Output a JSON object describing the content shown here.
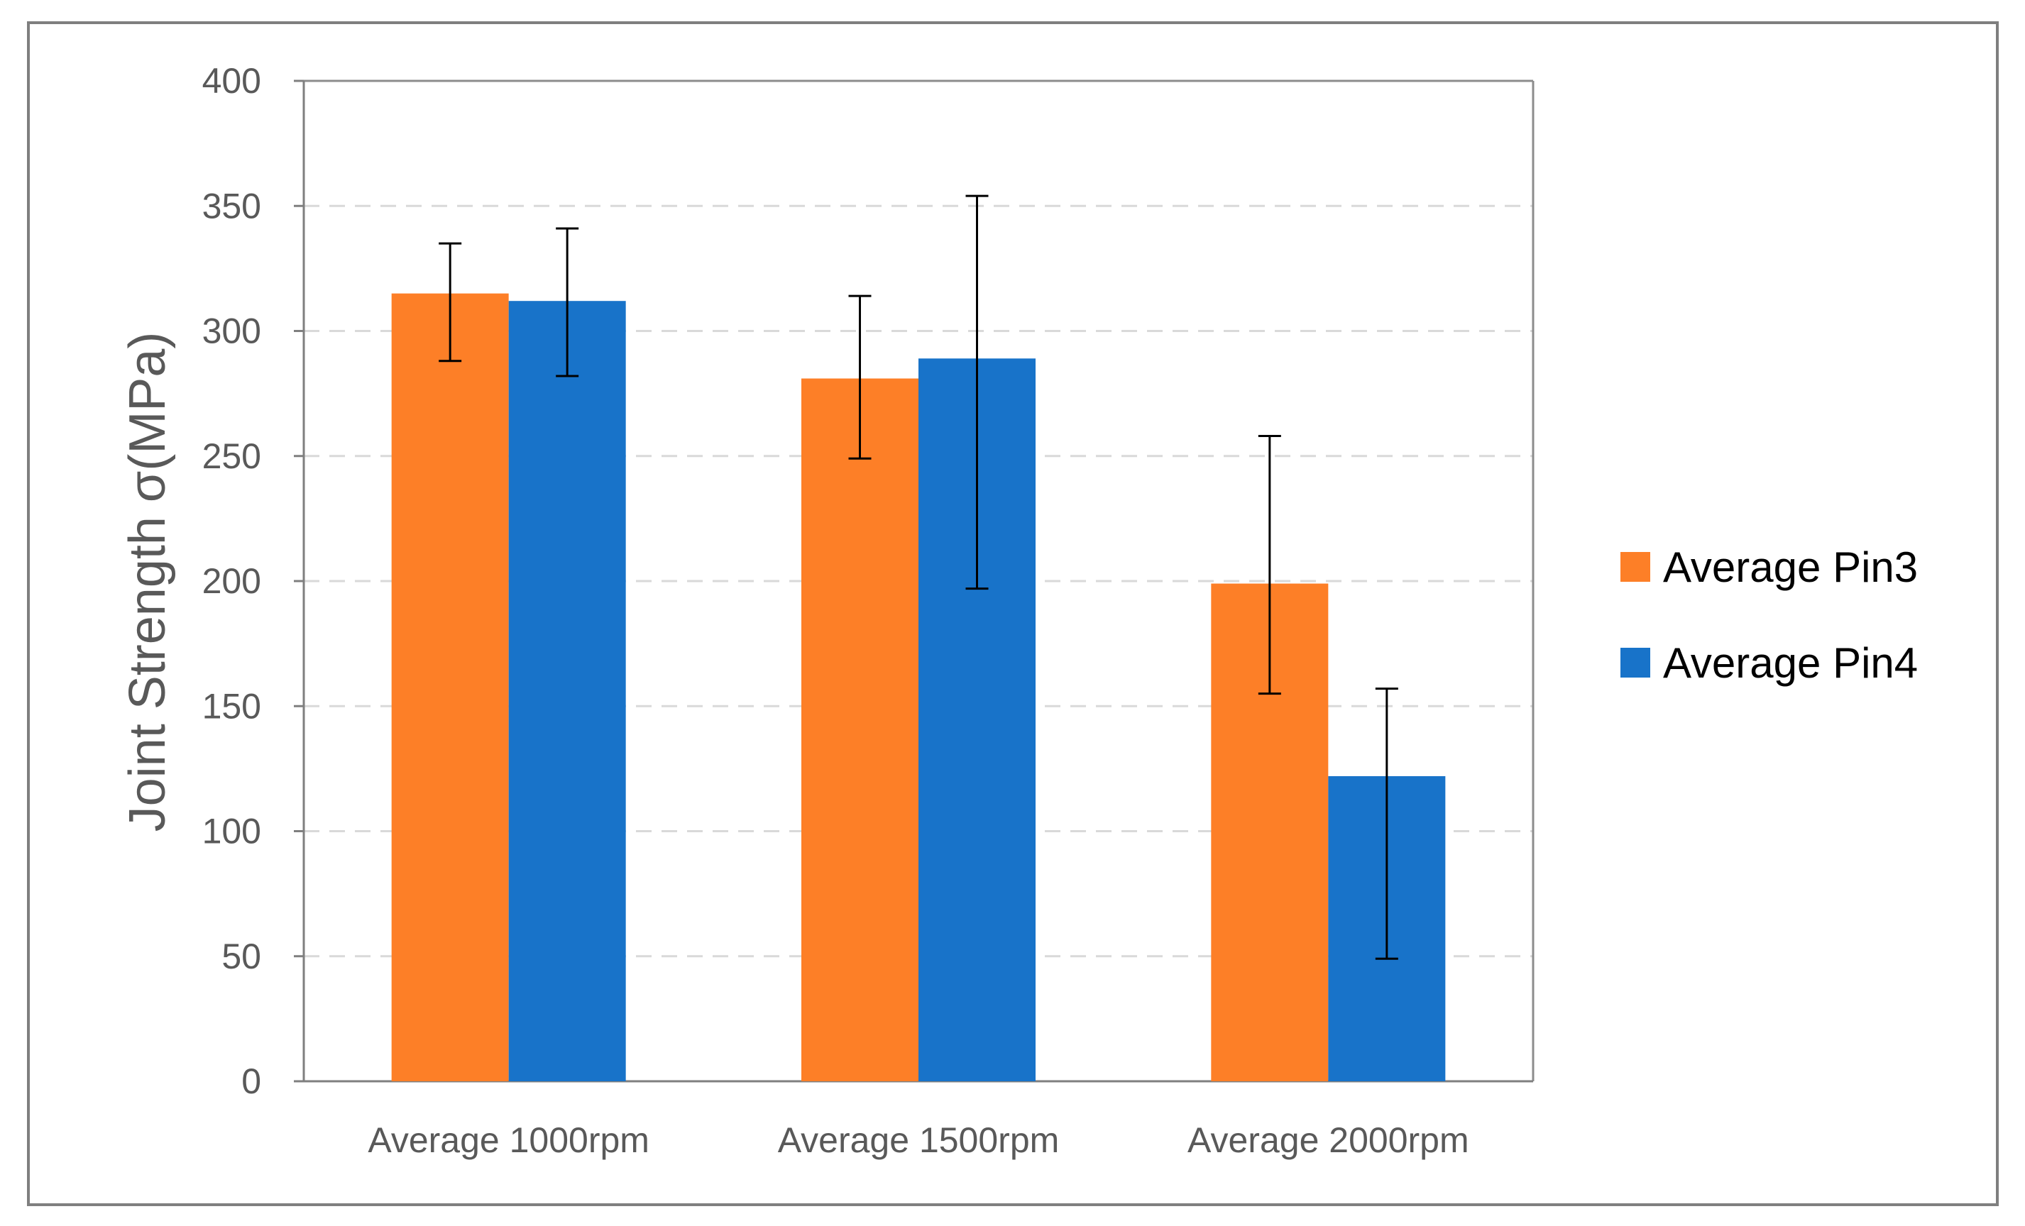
{
  "chart_data": {
    "type": "bar",
    "title": "",
    "xlabel": "",
    "ylabel": "Joint Strength σ(MPa)",
    "ylim": [
      0,
      400
    ],
    "yticks": [
      0,
      50,
      100,
      150,
      200,
      250,
      300,
      350,
      400
    ],
    "ytick_labels": [
      "0",
      "50",
      "100",
      "150",
      "200",
      "250",
      "300",
      "350",
      "400"
    ],
    "grid": true,
    "legend_position": "right",
    "categories": [
      "Average 1000rpm",
      "Average 1500rpm",
      "Average 2000rpm"
    ],
    "series": [
      {
        "name": "Average Pin3",
        "color": "#fd7f27",
        "values": [
          315,
          281,
          199
        ],
        "error_low": [
          288,
          249,
          155
        ],
        "error_high": [
          335,
          314,
          258
        ]
      },
      {
        "name": "Average Pin4",
        "color": "#1873c9",
        "values": [
          312,
          289,
          122
        ],
        "error_low": [
          282,
          197,
          49
        ],
        "error_high": [
          341,
          354,
          157
        ]
      }
    ]
  }
}
